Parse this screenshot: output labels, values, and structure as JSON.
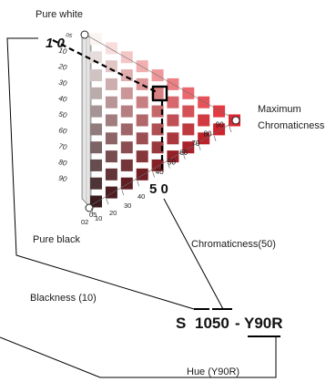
{
  "labels": {
    "pure_white": "Pure white",
    "pure_black": "Pure black",
    "max_chroma_line1": "Maximum",
    "max_chroma_line2": "Chromaticness",
    "chromaticness": "Chromaticness(50)",
    "blackness": "Blackness (10)",
    "hue": "Hue (Y90R)"
  },
  "notation": {
    "prefix": "S",
    "nuance": "1050",
    "separator": "-",
    "hue": "Y90R"
  },
  "marker_values": {
    "blackness": "1 0",
    "chromaticness": "5 0"
  },
  "blackness_scale": [
    "05",
    "10",
    "20",
    "30",
    "40",
    "50",
    "60",
    "70",
    "80",
    "90"
  ],
  "chromaticness_scale": [
    "05",
    "10",
    "20",
    "30",
    "40",
    "50",
    "60",
    "70",
    "80",
    "90"
  ],
  "bottom_scale": [
    "02",
    "05",
    "10",
    "20",
    "30",
    "40"
  ],
  "colors": {
    "white": "#fbf4f2",
    "black": "#3a1c20",
    "full_chroma": "#e0242d",
    "highlight_stroke": "#000000"
  },
  "highlighted_cell": {
    "blackness": 10,
    "chromaticness": 50
  }
}
